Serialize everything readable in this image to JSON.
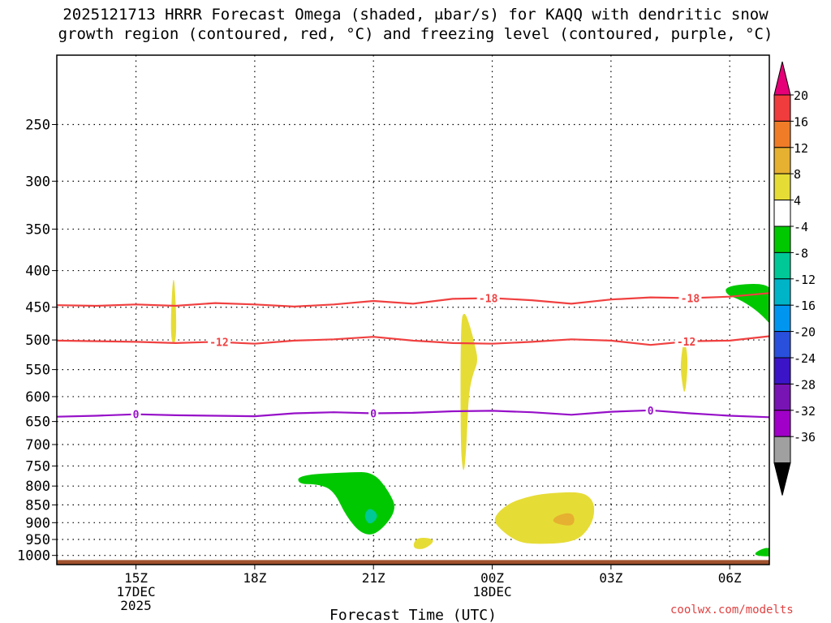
{
  "title_lines": [
    "2025121713 HRRR Forecast Omega (shaded, μbar/s) for KAQQ with dendritic snow",
    "growth region (contoured, red, °C) and freezing level (contoured, purple, °C)"
  ],
  "credit": "coolwx.com/modelts",
  "chart_data": {
    "type": "contour",
    "xlabel": "Forecast Time (UTC)",
    "x_ticks": [
      {
        "hour": 15,
        "lines": [
          "15Z",
          "17DEC",
          "2025"
        ]
      },
      {
        "hour": 18,
        "lines": [
          "18Z"
        ]
      },
      {
        "hour": 21,
        "lines": [
          "21Z"
        ]
      },
      {
        "hour": 24,
        "lines": [
          "00Z",
          "18DEC"
        ]
      },
      {
        "hour": 27,
        "lines": [
          "03Z"
        ]
      },
      {
        "hour": 30,
        "lines": [
          "06Z"
        ]
      }
    ],
    "xlim_hours": [
      13,
      31
    ],
    "ylim_hpa": [
      1030,
      200
    ],
    "y_log_scale": true,
    "y_ticks": [
      250,
      300,
      350,
      400,
      450,
      500,
      550,
      600,
      650,
      700,
      750,
      800,
      850,
      900,
      950,
      1000
    ],
    "grid": "dotted",
    "ground_surface_hpa": 1015,
    "ground_color": "#a0522d",
    "colorbar": {
      "labels": [
        "20",
        "16",
        "12",
        "8",
        "4",
        "-4",
        "-8",
        "-12",
        "-16",
        "-20",
        "-24",
        "-28",
        "-32",
        "-36"
      ],
      "colors": [
        "#f03c3c",
        "#f07c28",
        "#e6b030",
        "#e6dc36",
        "#ffffff",
        "#00c800",
        "#00c896",
        "#00b4c8",
        "#0096f0",
        "#2850dc",
        "#3c14c8",
        "#7814b4",
        "#a000c8",
        "#a0a0a0"
      ],
      "top_arrow_color": "#e60078",
      "bottom_arrow_color": "#000000"
    },
    "isotherms": [
      {
        "label": "-18",
        "color": "#f04040",
        "points": [
          [
            13,
            447
          ],
          [
            14,
            448
          ],
          [
            15,
            446
          ],
          [
            16,
            448
          ],
          [
            17,
            444
          ],
          [
            18,
            446
          ],
          [
            19,
            449
          ],
          [
            20,
            446
          ],
          [
            21,
            441
          ],
          [
            22,
            445
          ],
          [
            23,
            438
          ],
          [
            24,
            437
          ],
          [
            25,
            440
          ],
          [
            26,
            445
          ],
          [
            27,
            439
          ],
          [
            28,
            436
          ],
          [
            29,
            437
          ],
          [
            30,
            435
          ],
          [
            31,
            430
          ]
        ],
        "label_hours": [
          23.9,
          29.0
        ]
      },
      {
        "label": "-12",
        "color": "#f04040",
        "points": [
          [
            13,
            501
          ],
          [
            14,
            502
          ],
          [
            15,
            503
          ],
          [
            16,
            505
          ],
          [
            17,
            503
          ],
          [
            18,
            506
          ],
          [
            19,
            501
          ],
          [
            20,
            499
          ],
          [
            21,
            495
          ],
          [
            22,
            501
          ],
          [
            23,
            505
          ],
          [
            24,
            506
          ],
          [
            25,
            503
          ],
          [
            26,
            499
          ],
          [
            27,
            501
          ],
          [
            28,
            508
          ],
          [
            29,
            502
          ],
          [
            30,
            501
          ],
          [
            31,
            494
          ]
        ],
        "label_hours": [
          17.1,
          28.9
        ]
      },
      {
        "label": "0",
        "color": "#9610c8",
        "points": [
          [
            13,
            640
          ],
          [
            14,
            638
          ],
          [
            15,
            635
          ],
          [
            16,
            637
          ],
          [
            17,
            638
          ],
          [
            18,
            639
          ],
          [
            19,
            633
          ],
          [
            20,
            631
          ],
          [
            21,
            633
          ],
          [
            22,
            632
          ],
          [
            23,
            629
          ],
          [
            24,
            628
          ],
          [
            25,
            631
          ],
          [
            26,
            636
          ],
          [
            27,
            630
          ],
          [
            28,
            627
          ],
          [
            29,
            633
          ],
          [
            30,
            638
          ],
          [
            31,
            641
          ]
        ],
        "label_hours": [
          15,
          21,
          28
        ]
      }
    ],
    "omega_regions": [
      {
        "value_range": [
          4,
          8
        ],
        "color": "#e6dc36",
        "points": [
          [
            15.85,
            505
          ],
          [
            15.95,
            385
          ],
          [
            16.05,
            505
          ]
        ]
      },
      {
        "value_range": [
          4,
          8
        ],
        "color": "#e6dc36",
        "points": [
          [
            23.25,
            760
          ],
          [
            23.2,
            700
          ],
          [
            23.2,
            470
          ],
          [
            23.3,
            455
          ],
          [
            23.45,
            480
          ],
          [
            23.55,
            505
          ],
          [
            23.65,
            535
          ],
          [
            23.5,
            560
          ],
          [
            23.4,
            600
          ],
          [
            23.35,
            700
          ],
          [
            23.3,
            760
          ]
        ]
      },
      {
        "value_range": [
          4,
          8
        ],
        "color": "#e6dc36",
        "points": [
          [
            28.8,
            575
          ],
          [
            28.75,
            545
          ],
          [
            28.8,
            515
          ],
          [
            28.85,
            497
          ],
          [
            28.95,
            530
          ],
          [
            28.9,
            580
          ],
          [
            28.85,
            595
          ]
        ]
      },
      {
        "value_range": [
          4,
          8
        ],
        "color": "#e6dc36",
        "points": [
          [
            22.0,
            965
          ],
          [
            22.1,
            945
          ],
          [
            22.4,
            945
          ],
          [
            22.55,
            955
          ],
          [
            22.3,
            980
          ],
          [
            22.05,
            980
          ]
        ]
      },
      {
        "value_range": [
          4,
          8
        ],
        "color": "#e6dc36",
        "points": [
          [
            24.0,
            888
          ],
          [
            24.4,
            845
          ],
          [
            25.0,
            825
          ],
          [
            25.5,
            818
          ],
          [
            26.2,
            815
          ],
          [
            26.5,
            830
          ],
          [
            26.6,
            862
          ],
          [
            26.5,
            910
          ],
          [
            26.1,
            960
          ],
          [
            25.0,
            965
          ],
          [
            24.6,
            955
          ],
          [
            24.2,
            920
          ]
        ]
      },
      {
        "value_range": [
          8,
          12
        ],
        "color": "#e6b030",
        "points": [
          [
            25.5,
            900
          ],
          [
            25.6,
            880
          ],
          [
            26.0,
            870
          ],
          [
            26.1,
            892
          ],
          [
            26.0,
            912
          ]
        ]
      },
      {
        "value_range": [
          -8,
          -4
        ],
        "color": "#00c800",
        "points": [
          [
            19.1,
            772
          ],
          [
            20.4,
            765
          ],
          [
            21.0,
            765
          ],
          [
            21.4,
            815
          ],
          [
            21.6,
            865
          ],
          [
            21.1,
            935
          ],
          [
            20.7,
            935
          ],
          [
            20.3,
            880
          ],
          [
            20.0,
            812
          ],
          [
            19.6,
            795
          ],
          [
            19.1,
            795
          ]
        ]
      },
      {
        "value_range": [
          -12,
          -8
        ],
        "color": "#00c896",
        "points": [
          [
            20.9,
            855
          ],
          [
            21.15,
            880
          ],
          [
            20.9,
            910
          ],
          [
            20.75,
            880
          ]
        ]
      },
      {
        "value_range": [
          -8,
          -4
        ],
        "color": "#00c800",
        "points": [
          [
            29.9,
            420
          ],
          [
            30.9,
            416
          ],
          [
            31.1,
            430
          ],
          [
            31.2,
            488
          ],
          [
            30.8,
            460
          ],
          [
            30.3,
            440
          ],
          [
            29.9,
            432
          ]
        ]
      },
      {
        "value_range": [
          -8,
          -4
        ],
        "color": "#00c800",
        "points": [
          [
            30.5,
            1000
          ],
          [
            31.0,
            968
          ],
          [
            31.2,
            1005
          ]
        ]
      }
    ]
  }
}
